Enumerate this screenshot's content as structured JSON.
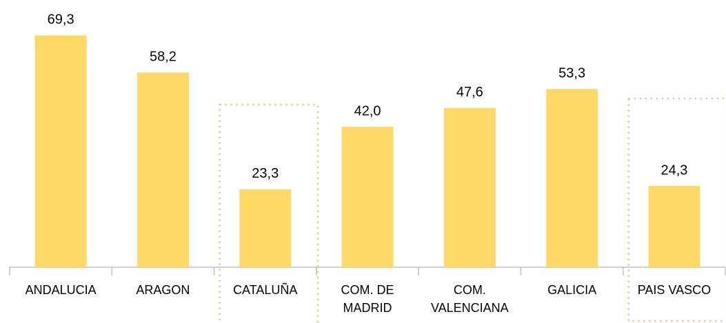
{
  "chart_data": {
    "type": "bar",
    "categories": [
      "ANDALUCIA",
      "ARAGON",
      "CATALUÑA",
      "COM. DE MADRID",
      "COM. VALENCIANA",
      "GALICIA",
      "PAIS VASCO"
    ],
    "values": [
      69.3,
      58.2,
      23.3,
      42.0,
      47.6,
      53.3,
      24.3
    ],
    "value_labels": [
      "69,3",
      "58,2",
      "23,3",
      "42,0",
      "47,6",
      "53,3",
      "24,3"
    ],
    "color": "#ffd966",
    "ylim": [
      0,
      70
    ],
    "highlighted": [
      2,
      6
    ],
    "highlight_color": "#f4b183"
  }
}
